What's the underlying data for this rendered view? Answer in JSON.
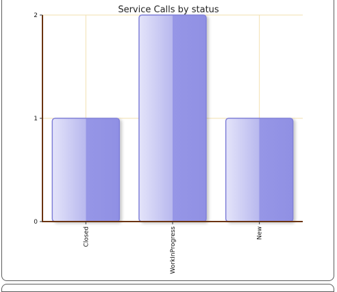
{
  "chart_data": {
    "type": "bar",
    "title": "Service Calls by status",
    "categories": [
      "Closed",
      "WorkInProgress",
      "New"
    ],
    "values": [
      1,
      2,
      1
    ],
    "ylim": [
      0,
      2
    ],
    "yticks": [
      "0",
      "1",
      "2"
    ],
    "xlabel": "",
    "ylabel": "",
    "grid": true,
    "legend": "none"
  },
  "colors": {
    "bar_light": "#dcdcf7",
    "bar_dark": "#9494e6",
    "bar_stroke": "#8080d8",
    "axis": "#6b3410",
    "grid": "#f2dfae"
  }
}
